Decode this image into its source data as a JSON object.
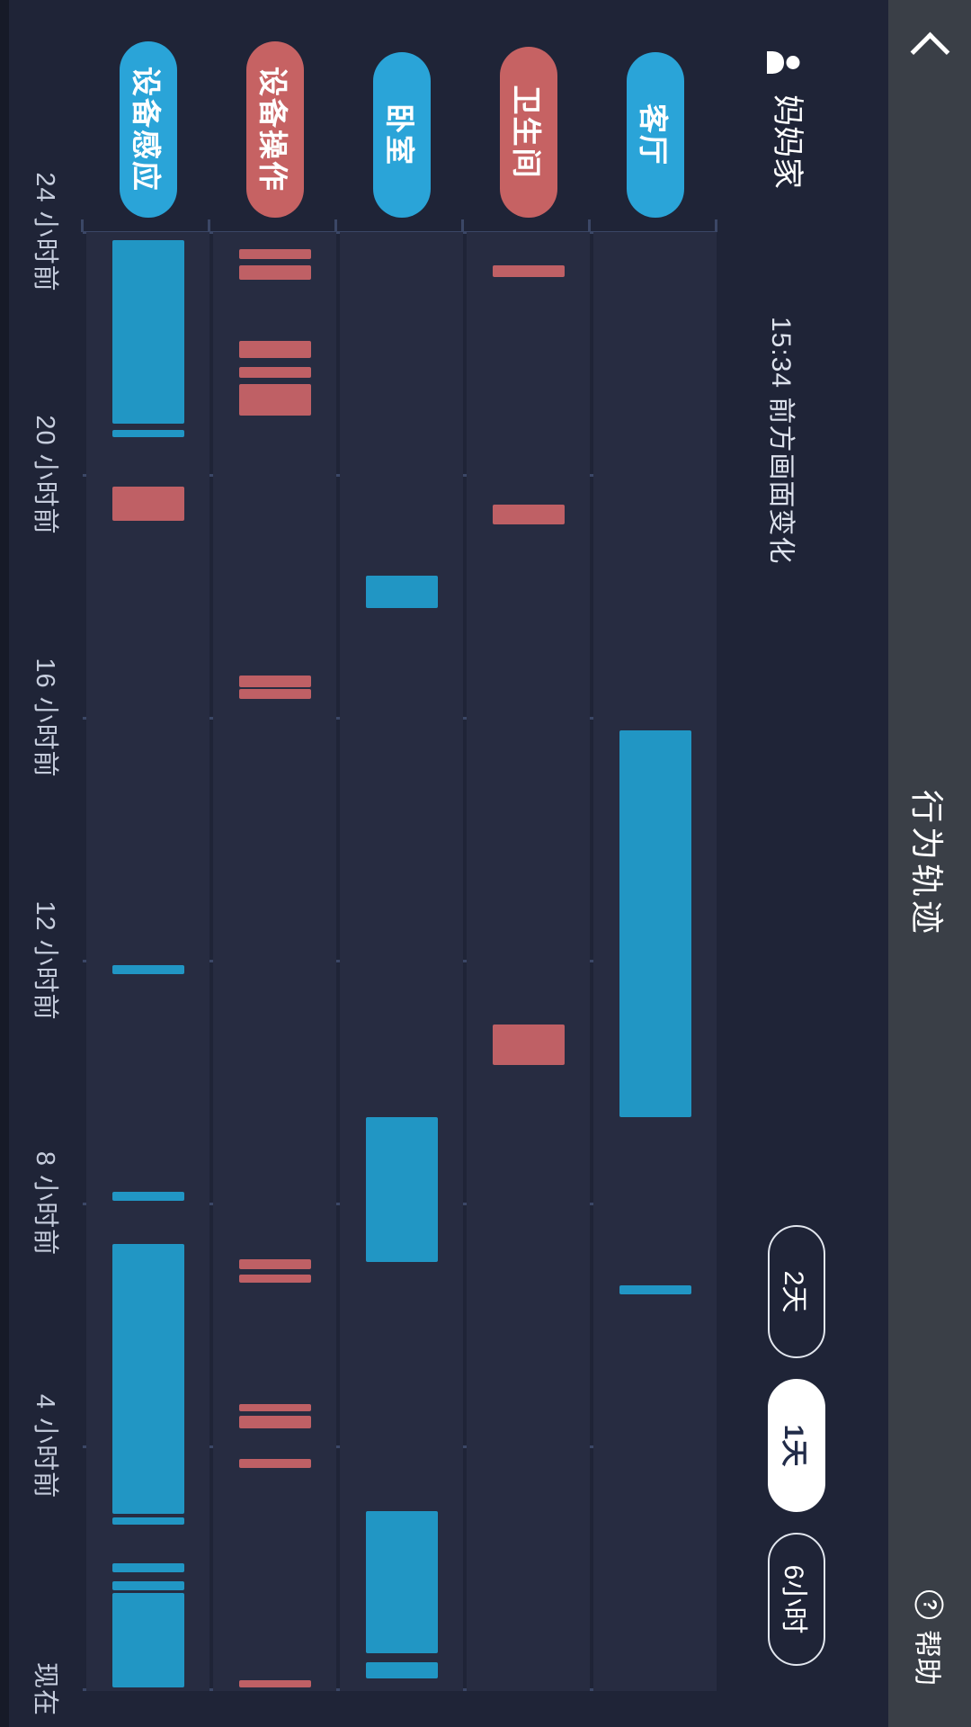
{
  "header": {
    "title": "行为轨迹",
    "help_label": "帮助",
    "help_icon_glyph": "?"
  },
  "toolbar": {
    "profile_name": "妈妈家",
    "event_note": "15:34 前方画面变化",
    "range_buttons": [
      {
        "label": "2天",
        "selected": false
      },
      {
        "label": "1天",
        "selected": true
      },
      {
        "label": "6小时",
        "selected": false
      }
    ]
  },
  "colors": {
    "page_bg": "#1f2437",
    "header_bg": "#3a3f47",
    "band_bg": "#272c41",
    "grid": "#3b4766",
    "pill_blue": "#2aa4d8",
    "pill_red": "#c66263",
    "bar_blue": "#2196c4",
    "bar_red": "#bf6065",
    "selected_text": "#222c49"
  },
  "chart_data": {
    "type": "gantt-timeline",
    "title": "行为轨迹",
    "x_axis": {
      "unit": "hours_ago",
      "range": [
        24,
        0
      ],
      "ticks": [
        {
          "label": "24 小时前",
          "hours_ago": 24
        },
        {
          "label": "20 小时前",
          "hours_ago": 20
        },
        {
          "label": "16 小时前",
          "hours_ago": 16
        },
        {
          "label": "12 小时前",
          "hours_ago": 12
        },
        {
          "label": "8 小时前",
          "hours_ago": 8
        },
        {
          "label": "4 小时前",
          "hours_ago": 4
        },
        {
          "label": "现在",
          "hours_ago": 0
        }
      ],
      "grid": true
    },
    "legend_position": "row-pills-left",
    "rows": [
      {
        "label": "客厅",
        "color": "blue",
        "bars": [
          {
            "start": 15.79,
            "end": 9.42
          },
          {
            "start": 6.65,
            "end": 6.5
          }
        ]
      },
      {
        "label": "卫生间",
        "color": "red",
        "bars": [
          {
            "start": 23.45,
            "end": 23.26
          },
          {
            "start": 19.51,
            "end": 19.19
          },
          {
            "start": 10.95,
            "end": 10.28
          }
        ]
      },
      {
        "label": "卧室",
        "color": "blue",
        "bars": [
          {
            "start": 18.34,
            "end": 17.81
          },
          {
            "start": 9.42,
            "end": 7.04
          },
          {
            "start": 2.93,
            "end": 0.59
          },
          {
            "start": 0.44,
            "end": 0.18
          }
        ]
      },
      {
        "label": "设备操作",
        "color": "red",
        "bars": [
          {
            "start": 23.72,
            "end": 23.56
          },
          {
            "start": 23.45,
            "end": 23.21
          },
          {
            "start": 22.21,
            "end": 21.93
          },
          {
            "start": 21.78,
            "end": 21.6
          },
          {
            "start": 21.5,
            "end": 20.98
          },
          {
            "start": 16.7,
            "end": 16.5
          },
          {
            "start": 16.47,
            "end": 16.31
          },
          {
            "start": 7.08,
            "end": 6.92
          },
          {
            "start": 6.83,
            "end": 6.7
          },
          {
            "start": 4.7,
            "end": 4.58
          },
          {
            "start": 4.5,
            "end": 4.3
          },
          {
            "start": 3.79,
            "end": 3.64
          },
          {
            "start": 0.15,
            "end": 0.03
          }
        ]
      },
      {
        "label": "设备感应",
        "color": "blue",
        "bars": [
          {
            "start": 23.87,
            "end": 20.84
          },
          {
            "start": 20.74,
            "end": 20.62
          },
          {
            "start": 19.81,
            "end": 19.24,
            "color": "red"
          },
          {
            "start": 11.93,
            "end": 11.78
          },
          {
            "start": 8.19,
            "end": 8.04
          },
          {
            "start": 7.33,
            "end": 2.89
          },
          {
            "start": 2.83,
            "end": 2.71
          },
          {
            "start": 2.07,
            "end": 1.93
          },
          {
            "start": 1.78,
            "end": 1.63
          },
          {
            "start": 1.59,
            "end": 0.03
          }
        ]
      }
    ]
  }
}
